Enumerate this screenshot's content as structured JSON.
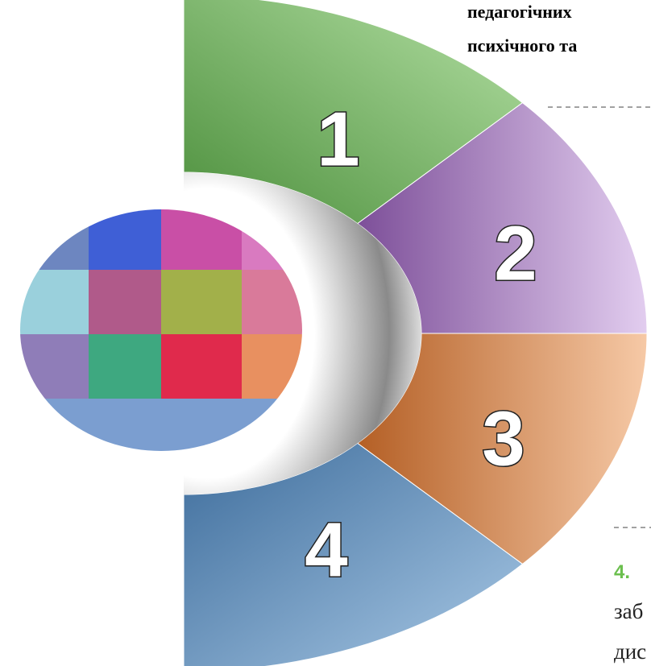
{
  "header": {
    "lines": [
      "педагогічних",
      "психічного та"
    ]
  },
  "segments": [
    {
      "label": "1"
    },
    {
      "label": "2"
    },
    {
      "label": "3"
    },
    {
      "label": "4"
    }
  ],
  "item": {
    "number": "4.",
    "lines": [
      "заб",
      "дис"
    ]
  }
}
